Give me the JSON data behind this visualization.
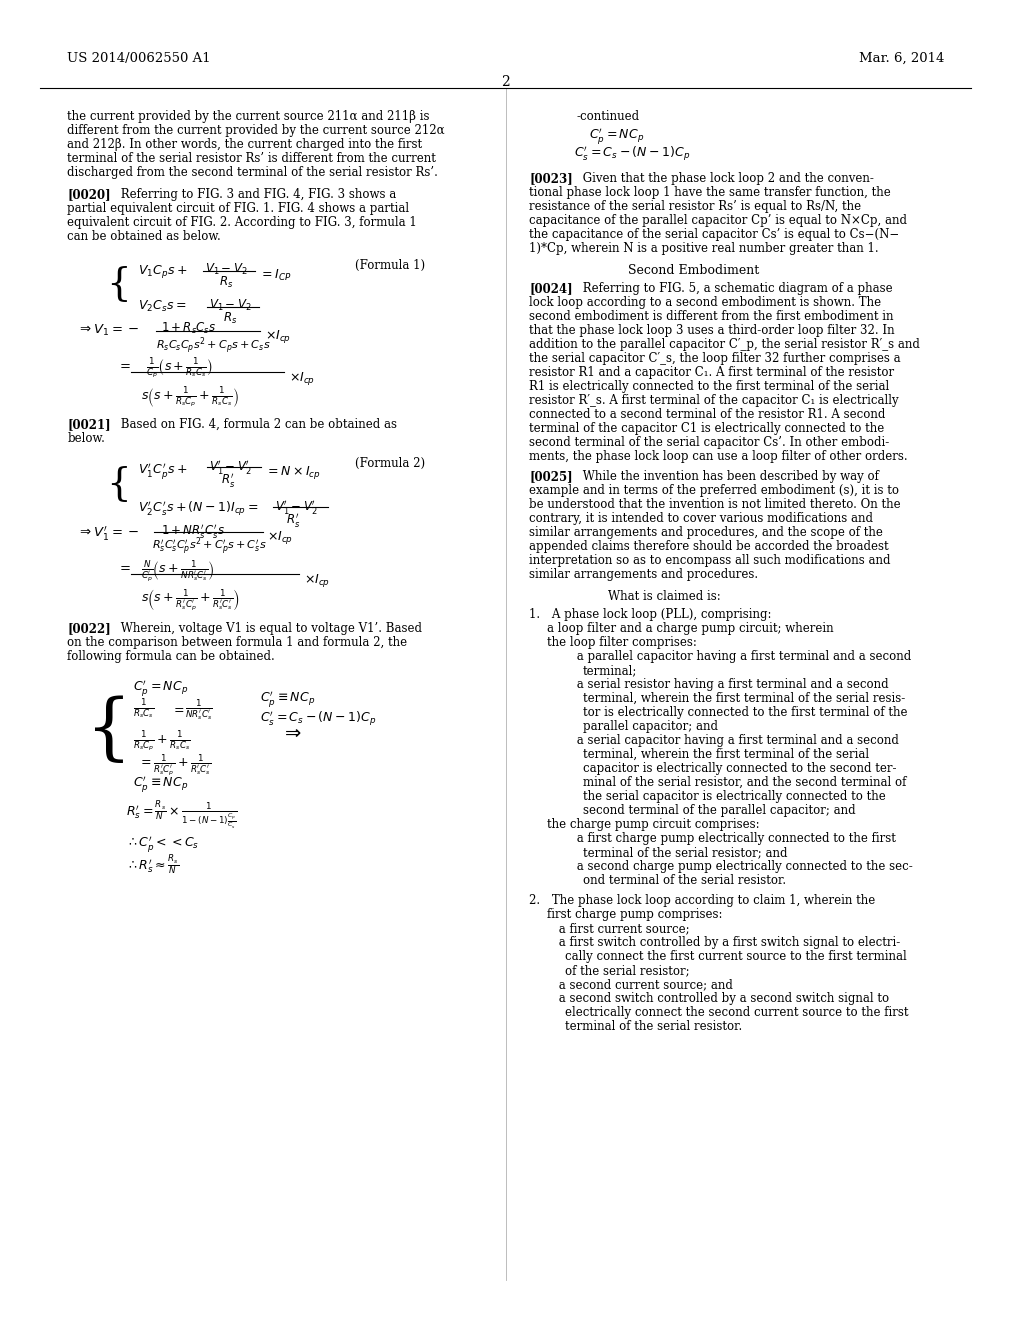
{
  "background_color": "#ffffff",
  "page_number": "2",
  "header_left": "US 2014/0062550 A1",
  "header_right": "Mar. 6, 2014",
  "body_left_col": {
    "intro_text": "the current provided by the current source 211α and 211β is\ndifferent from the current provided by the current source 212α\nand 212β. In other words, the current charged into the first\nterminal of the serial resistor Rs’ is different from the current\ndischarged from the second terminal of the serial resistor Rs’.",
    "p0020": "[0020] Referring to FIG. 3 and FIG. 4, FIG. 3 shows a\npartial equivalent circuit of FIG. 1. FIG. 4 shows a partial\nequivalent circuit of FIG. 2. According to FIG. 3, formula 1\ncan be obtained as below.",
    "p0021": "[0021] Based on FIG. 4, formula 2 can be obtained as\nbelow.",
    "p0022": "[0022] Wherein, voltage V1 is equal to voltage V1’. Based\non the comparison between formula 1 and formula 2, the\nfollowing formula can be obtained."
  },
  "body_right_col": {
    "continued": "-continued",
    "eq_cont1": "C′_p = NC_p",
    "eq_cont2": "C′_s = C_s − (N − 1)C_p",
    "p0023": "[0023] Given that the phase lock loop 2 and the conven-\ntional phase lock loop 1 have the same transfer function, the\nresistance of the serial resistor Rs’ is equal to Rs/N, the\ncapacitance of the parallel capacitor Cp’ is equal to N×Cp, and\nthe capacitance of the serial capacitor Cs’ is equal to Cs−(N−\n1)*Cp, wherein N is a positive real number greater than 1.",
    "second_embodiment": "Second Embodiment",
    "p0024": "[0024] Referring to FIG. 5, a schematic diagram of a phase\nlock loop according to a second embodiment is shown. The\nsecond embodiment is different from the first embodiment in\nthat the phase lock loop 3 uses a third-order loop filter 32. In\naddition to the parallel capacitor C_p’, the serial resistor R_s’ and\nthe serial capacitor C_s’, the loop filter 32 further comprises a\nresistor R1 and a capacitor C_1. A first terminal of the resistor\nR1 is electrically connected to the first terminal of the serial\nresistor R_s’. A first terminal of the capacitor C_1 is electrically\nconnected to a second terminal of the resistor R1. A second\nterminal of the capacitor C1 is electrically connected to the\nsecond terminal of the serial capacitor Cs’. In other embodi-\nments, the phase lock loop can use a loop filter of other orders.",
    "p0025": "[0025] While the invention has been described by way of\nexample and in terms of the preferred embodiment (s), it is to\nbe understood that the invention is not limited thereto. On the\ncontrary, it is intended to cover various modifications and\nsimilar arrangements and procedures, and the scope of the\nappended claims therefore should be accorded the broadest\ninterpretation so as to encompass all such modifications and\nsimilar arrangements and procedures.",
    "claims_title": "What is claimed is:",
    "claim1": "1. A phase lock loop (PLL), comprising:\na loop filter and a charge pump circuit; wherein\nthe loop filter comprises:\na parallel capacitor having a first terminal and a second\nterminal;\na serial resistor having a first terminal and a second\nterminal, wherein the first terminal of the serial resis-\ntor is electrically connected to the first terminal of the\nparallel capacitor; and\na serial capacitor having a first terminal and a second\nterminal, wherein the first terminal of the serial\ncapacitor is electrically connected to the second ter-\nminal of the serial resistor, and the second terminal of\nthe serial capacitor is electrically connected to the\nsecond terminal of the parallel capacitor; and\nthe charge pump circuit comprises:\na first charge pump electrically connected to the first\nterminal of the serial resistor; and\na second charge pump electrically connected to the sec-\nond terminal of the serial resistor.",
    "claim2": "2. The phase lock loop according to claim 1, wherein the\nfirst charge pump comprises:\na first current source;\na first switch controlled by a first switch signal to electri-\ncally connect the first current source to the first terminal\nof the serial resistor;\na second current source; and\na second switch controlled by a second switch signal to\nelectrically connect the second current source to the first\nterminal of the serial resistor."
  }
}
